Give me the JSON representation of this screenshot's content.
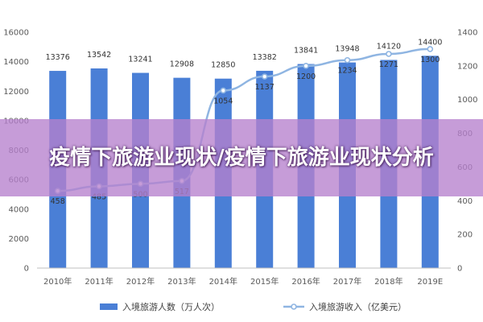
{
  "banner": {
    "title": "疫情下旅游业现状/疫情下旅游业现状分析"
  },
  "chart_data": {
    "type": "bar+line",
    "title": "",
    "categories": [
      "2010年",
      "2011年",
      "2012年",
      "2013年",
      "2014年",
      "2015年",
      "2016年",
      "2017年",
      "2018年",
      "2019E"
    ],
    "series": [
      {
        "name": "入境旅游人数（万人次）",
        "kind": "bar",
        "axis": "left",
        "color": "#4a7fd6",
        "values": [
          13376,
          13542,
          13241,
          12908,
          12850,
          13382,
          13841,
          13948,
          14120,
          14400
        ],
        "labels": [
          "13376",
          "13542",
          "13241",
          "12908",
          "12850",
          "13382",
          "13841",
          "13948",
          "14120",
          "14400"
        ]
      },
      {
        "name": "入境旅游收入（亿美元）",
        "kind": "line",
        "axis": "right",
        "color": "#8fb5e2",
        "values": [
          458,
          485,
          500,
          517,
          1054,
          1137,
          1200,
          1234,
          1271,
          1300
        ],
        "labels": [
          "458",
          "485",
          "500",
          "517",
          "1054",
          "1137",
          "1200",
          "1234",
          "1271",
          "1300"
        ]
      }
    ],
    "y_left": {
      "ylim": [
        0,
        16000
      ],
      "ticks": [
        "0",
        "2000",
        "4000",
        "6000",
        "8000",
        "10000",
        "12000",
        "14000",
        "16000"
      ]
    },
    "y_right": {
      "ylim": [
        0,
        1400
      ],
      "ticks": [
        "0",
        "200",
        "400",
        "600",
        "800",
        "1000",
        "1200",
        "1400"
      ]
    },
    "legend": "bottom",
    "grid": false
  }
}
